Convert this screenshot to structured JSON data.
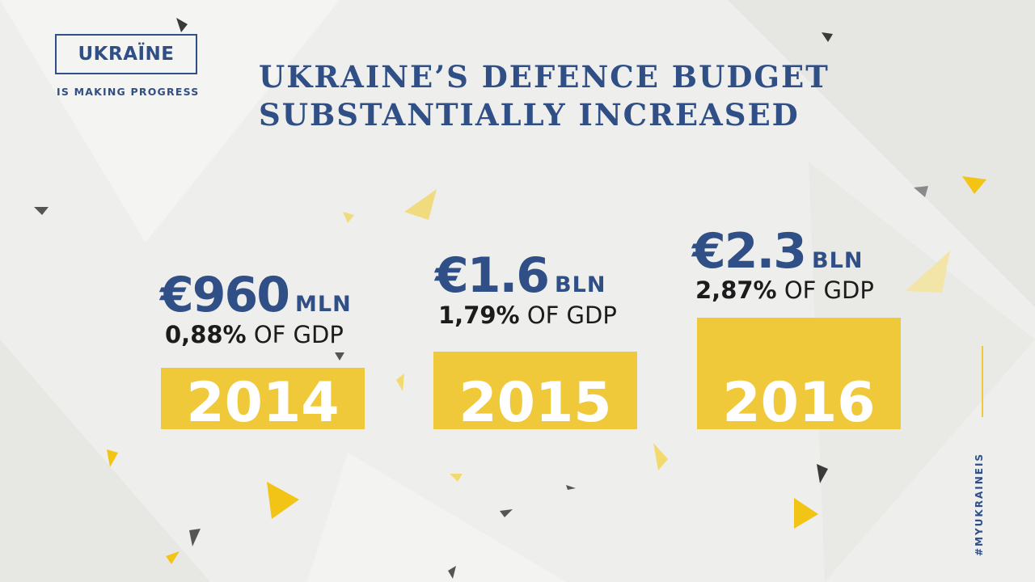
{
  "logo": {
    "name": "UKRAÏNE",
    "tagline": "IS MAKING PROGRESS"
  },
  "title_lines": [
    "UKRAINE’S DEFENCE BUDGET",
    "SUBSTANTIALLY INCREASED"
  ],
  "hashtag": "#MYUKRAINEIS",
  "colors": {
    "navy": "#2f4f86",
    "bar": "#f0c93a",
    "bar_text": "#ffffff",
    "background": "#eeeeec"
  },
  "chart_data": {
    "type": "bar",
    "categories": [
      "2014",
      "2015",
      "2016"
    ],
    "values": [
      0.96,
      1.6,
      2.3
    ],
    "unit": "BLN EUR",
    "labels": [
      {
        "amount": "€960",
        "unit": "MLN",
        "pct": "0,88%",
        "pct_suffix": " OF GDP"
      },
      {
        "amount": "€1.6",
        "unit": "BLN",
        "pct": "1,79%",
        "pct_suffix": " OF GDP"
      },
      {
        "amount": "€2.3",
        "unit": "BLN",
        "pct": "2,87%",
        "pct_suffix": " OF GDP"
      }
    ],
    "gdp_share_percent": [
      0.88,
      1.79,
      2.87
    ]
  }
}
